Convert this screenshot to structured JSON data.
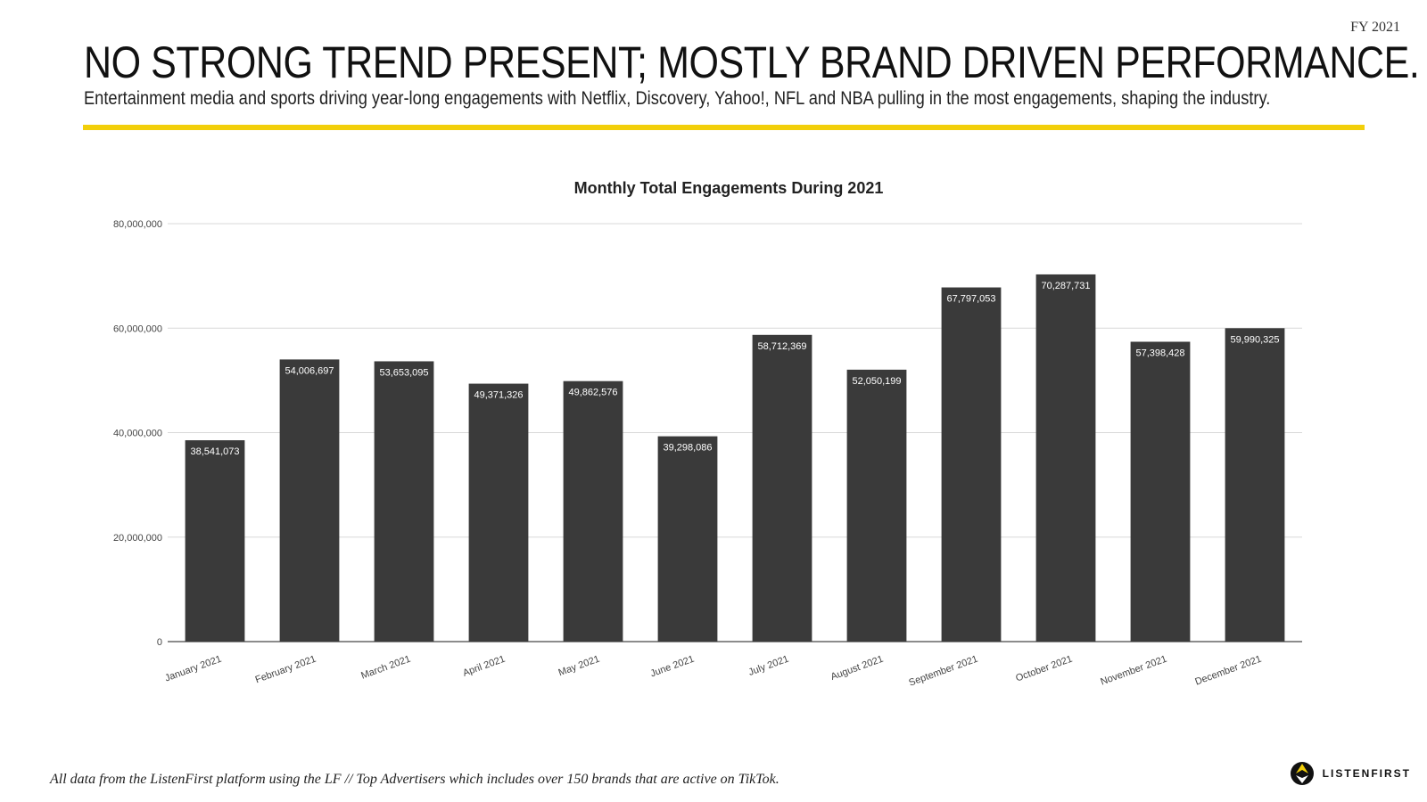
{
  "page": {
    "fy_label": "FY 2021",
    "headline": "NO STRONG TREND PRESENT; MOSTLY BRAND DRIVEN PERFORMANCE.",
    "subheadline": "Entertainment media and sports driving year-long engagements with Netflix, Discovery, Yahoo!, NFL and NBA pulling in the most engagements, shaping the industry.",
    "footer_note": "All data from the ListenFirst platform using the LF // Top Advertisers which includes over 150 brands that are active on TikTok.",
    "logo_text": "LISTENFIRST",
    "accent_color": "#f2cf0a"
  },
  "chart_data": {
    "type": "bar",
    "title": "Monthly Total Engagements During 2021",
    "xlabel": "",
    "ylabel": "",
    "categories": [
      "January 2021",
      "February 2021",
      "March 2021",
      "April 2021",
      "May 2021",
      "June 2021",
      "July 2021",
      "August 2021",
      "September 2021",
      "October 2021",
      "November 2021",
      "December 2021"
    ],
    "values": [
      38541073,
      54006697,
      53653095,
      49371326,
      49862576,
      39298086,
      58712369,
      52050199,
      67797053,
      70287731,
      57398428,
      59990325
    ],
    "value_labels": [
      "38,541,073",
      "54,006,697",
      "53,653,095",
      "49,371,326",
      "49,862,576",
      "39,298,086",
      "58,712,369",
      "52,050,199",
      "67,797,053",
      "70,287,731",
      "57,398,428",
      "59,990,325"
    ],
    "ylim": [
      0,
      80000000
    ],
    "y_ticks": [
      0,
      20000000,
      40000000,
      60000000,
      80000000
    ],
    "y_tick_labels": [
      "0",
      "20,000,000",
      "40,000,000",
      "60,000,000",
      "80,000,000"
    ],
    "grid": true,
    "legend": "none",
    "bar_color": "#3a3a3a",
    "label_color": "#ffffff"
  }
}
